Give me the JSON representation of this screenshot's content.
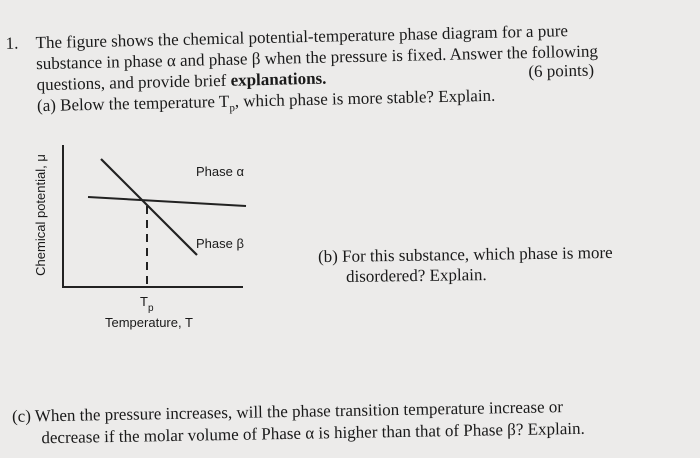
{
  "question": {
    "number": "1.",
    "intro_lines": [
      "The figure shows the chemical potential-temperature phase diagram for a pure",
      "substance in phase α and phase β when the pressure is fixed. Answer the following"
    ],
    "intro_last_plain": "questions, and provide brief ",
    "intro_last_bold": "explanations.",
    "points": "(6 points)"
  },
  "part_a": {
    "before": "(a) Below the temperature T",
    "subscript": "p",
    "after": ", which phase is more stable? Explain."
  },
  "diagram": {
    "y_axis_label": "Chemical potential, μ",
    "phase_alpha_label": "Phase α",
    "phase_beta_label": "Phase β",
    "tp_main": "T",
    "tp_sub": "p",
    "x_axis_label": "Temperature, T"
  },
  "part_b": {
    "lines": [
      "(b) For this substance, which phase is more",
      "disordered? Explain."
    ]
  },
  "part_c": {
    "lines": [
      "(c) When the pressure increases, will the phase transition temperature increase or",
      "decrease if the molar volume of Phase α is higher than that of Phase β? Explain."
    ]
  }
}
